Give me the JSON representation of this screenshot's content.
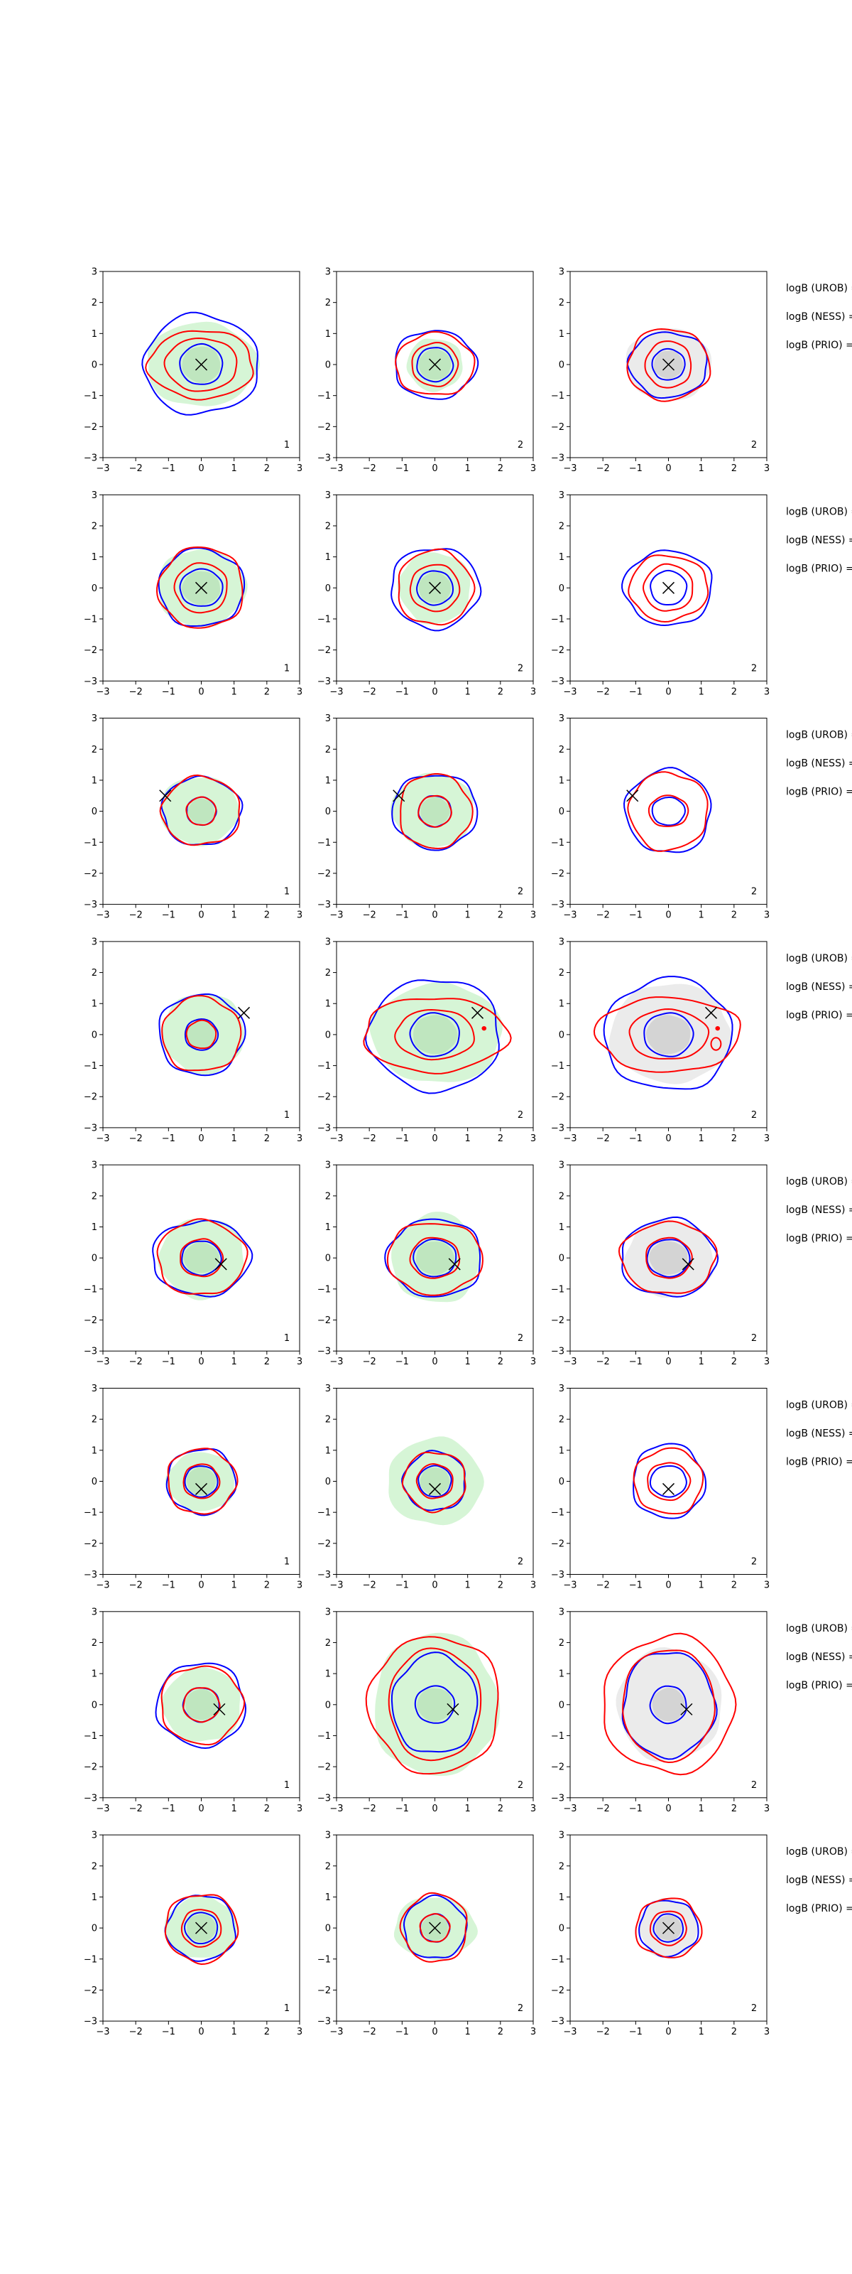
{
  "figure": {
    "rows": 8,
    "cols": 3,
    "row_labels": [
      "logB (UROB) =",
      "logB (NESS) =",
      "logB (PRIO) ="
    ]
  },
  "colors": {
    "fill_green": "#d6f5d6",
    "fill_gray": "#ebebeb",
    "uncertainty_blue": "#0000ff",
    "uncertainty_red": "#ff0000",
    "marker": "#000000",
    "frame": "#000000"
  },
  "chart_data": {
    "type": "contour-grid",
    "x_ticks": [
      "−3",
      "−2",
      "−1",
      "0",
      "1",
      "2",
      "3"
    ],
    "y_ticks": [
      "3",
      "2",
      "1",
      "0",
      "−1",
      "−2",
      "−3"
    ],
    "xlim": [
      -3,
      3
    ],
    "ylim": [
      -3,
      3
    ],
    "panel_numbers": [
      "1",
      "2",
      "2"
    ],
    "panel_fills": [
      "green",
      "green",
      "gray"
    ],
    "rows": [
      {
        "marker": [
          0,
          0
        ],
        "panels": [
          {
            "fill": [
              1.7,
              1.35
            ],
            "blue": [
              [
                1.75,
                1.6
              ],
              [
                0.65,
                0.65
              ]
            ],
            "red": [
              [
                1.6,
                1.1
              ],
              [
                1.1,
                0.85
              ]
            ],
            "extra": []
          },
          {
            "fill": [
              0.85,
              0.85
            ],
            "blue": [
              [
                1.25,
                1.1
              ],
              [
                0.55,
                0.55
              ]
            ],
            "red": [
              [
                1.2,
                1.0
              ],
              [
                0.7,
                0.7
              ]
            ],
            "extra": []
          },
          {
            "fill": [
              1.3,
              1.15
            ],
            "blue": [
              [
                1.2,
                1.05
              ],
              [
                0.5,
                0.5
              ]
            ],
            "red": [
              [
                1.25,
                1.15
              ],
              [
                0.7,
                0.75
              ]
            ],
            "extra": []
          }
        ]
      },
      {
        "marker": [
          0,
          0
        ],
        "panels": [
          {
            "fill": [
              1.35,
              1.25
            ],
            "blue": [
              [
                1.3,
                1.25
              ],
              [
                0.65,
                0.6
              ]
            ],
            "red": [
              [
                1.3,
                1.3
              ],
              [
                0.8,
                0.8
              ]
            ],
            "extra": []
          },
          {
            "fill": [
              1.1,
              1.15
            ],
            "blue": [
              [
                1.35,
                1.3
              ],
              [
                0.55,
                0.55
              ]
            ],
            "red": [
              [
                1.15,
                1.2
              ],
              [
                0.75,
                0.75
              ]
            ],
            "extra": []
          },
          {
            "fill": [
              0,
              0
            ],
            "blue": [
              [
                1.35,
                1.2
              ],
              [
                0.55,
                0.55
              ]
            ],
            "red": [
              [
                1.2,
                1.05
              ],
              [
                0.75,
                0.75
              ]
            ],
            "extra": []
          }
        ]
      },
      {
        "marker": [
          -1.1,
          0.5
        ],
        "panels": [
          {
            "fill": [
              1.2,
              1.1
            ],
            "blue": [
              [
                1.2,
                1.1
              ],
              [
                0.45,
                0.45
              ]
            ],
            "red": [
              [
                1.2,
                1.1
              ],
              [
                0.45,
                0.45
              ]
            ],
            "extra": []
          },
          {
            "fill": [
              1.25,
              1.2
            ],
            "blue": [
              [
                1.3,
                1.2
              ],
              [
                0.5,
                0.5
              ]
            ],
            "red": [
              [
                1.1,
                1.2
              ],
              [
                0.5,
                0.5
              ]
            ],
            "extra": []
          },
          {
            "fill": [
              0,
              0
            ],
            "blue": [
              [
                1.3,
                1.35
              ],
              [
                0.5,
                0.45
              ]
            ],
            "red": [
              [
                1.2,
                1.25
              ],
              [
                0.6,
                0.5
              ]
            ],
            "extra": []
          }
        ]
      },
      {
        "marker": [
          1.3,
          0.7
        ],
        "panels": [
          {
            "fill": [
              1.25,
              1.3
            ],
            "blue": [
              [
                1.3,
                1.3
              ],
              [
                0.5,
                0.5
              ]
            ],
            "red": [
              [
                1.2,
                1.2
              ],
              [
                0.45,
                0.45
              ]
            ],
            "extra": []
          },
          {
            "fill": [
              2.0,
              1.6
            ],
            "blue": [
              [
                2.0,
                1.8
              ],
              [
                0.75,
                0.7
              ]
            ],
            "red": [
              [
                2.2,
                1.2
              ],
              [
                1.2,
                0.8
              ]
            ],
            "extra": [
              [
                1.5,
                0.2,
                0.05,
                0.05
              ]
            ]
          },
          {
            "fill": [
              1.85,
              1.6
            ],
            "blue": [
              [
                1.95,
                1.8
              ],
              [
                0.75,
                0.7
              ]
            ],
            "red": [
              [
                2.2,
                1.2
              ],
              [
                1.2,
                0.8
              ]
            ],
            "extra": [
              [
                1.5,
                0.2,
                0.05,
                0.05
              ],
              [
                1.45,
                -0.3,
                0.15,
                0.2
              ]
            ]
          }
        ]
      },
      {
        "marker": [
          0.6,
          -0.2
        ],
        "panels": [
          {
            "fill": [
              1.3,
              1.3
            ],
            "blue": [
              [
                1.5,
                1.2
              ],
              [
                0.6,
                0.55
              ]
            ],
            "red": [
              [
                1.35,
                1.2
              ],
              [
                0.65,
                0.6
              ]
            ],
            "extra": []
          },
          {
            "fill": [
              1.35,
              1.45
            ],
            "blue": [
              [
                1.45,
                1.25
              ],
              [
                0.65,
                0.6
              ]
            ],
            "red": [
              [
                1.45,
                1.15
              ],
              [
                0.75,
                0.65
              ]
            ],
            "extra": []
          },
          {
            "fill": [
              1.35,
              1.25
            ],
            "blue": [
              [
                1.45,
                1.25
              ],
              [
                0.65,
                0.6
              ]
            ],
            "red": [
              [
                1.45,
                1.15
              ],
              [
                0.7,
                0.65
              ]
            ],
            "extra": []
          }
        ]
      },
      {
        "marker": [
          0,
          -0.25
        ],
        "panels": [
          {
            "fill": [
              1.05,
              0.95
            ],
            "blue": [
              [
                1.05,
                1.05
              ],
              [
                0.5,
                0.5
              ]
            ],
            "red": [
              [
                1.05,
                1.05
              ],
              [
                0.55,
                0.55
              ]
            ],
            "extra": []
          },
          {
            "fill": [
              1.45,
              1.4
            ],
            "blue": [
              [
                0.95,
                0.95
              ],
              [
                0.5,
                0.5
              ]
            ],
            "red": [
              [
                0.95,
                0.95
              ],
              [
                0.55,
                0.55
              ]
            ],
            "extra": []
          },
          {
            "fill": [
              0,
              0
            ],
            "blue": [
              [
                1.1,
                1.2
              ],
              [
                0.55,
                0.5
              ]
            ],
            "red": [
              [
                1.05,
                1.05
              ],
              [
                0.65,
                0.6
              ]
            ],
            "extra": []
          }
        ]
      },
      {
        "marker": [
          0.55,
          -0.15
        ],
        "panels": [
          {
            "fill": [
              1.2,
              1.2
            ],
            "blue": [
              [
                1.35,
                1.35
              ],
              [
                0.55,
                0.55
              ]
            ],
            "red": [
              [
                1.25,
                1.25
              ],
              [
                0.55,
                0.55
              ]
            ],
            "extra": []
          },
          {
            "fill": [
              1.9,
              2.3
            ],
            "blue": [
              [
                1.3,
                1.6
              ],
              [
                0.6,
                0.6
              ]
            ],
            "red": [
              [
                2.0,
                2.2
              ],
              [
                1.4,
                1.8
              ]
            ],
            "extra": []
          },
          {
            "fill": [
              1.6,
              1.8
            ],
            "blue": [
              [
                1.4,
                1.7
              ],
              [
                0.55,
                0.6
              ]
            ],
            "red": [
              [
                2.0,
                2.2
              ],
              [
                1.4,
                1.8
              ]
            ],
            "extra": []
          }
        ]
      },
      {
        "marker": [
          0,
          0
        ],
        "panels": [
          {
            "fill": [
              1.1,
              1.0
            ],
            "blue": [
              [
                1.05,
                1.05
              ],
              [
                0.5,
                0.5
              ]
            ],
            "red": [
              [
                1.1,
                1.1
              ],
              [
                0.6,
                0.6
              ]
            ],
            "extra": []
          },
          {
            "fill": [
              1.25,
              1.0
            ],
            "blue": [
              [
                0.95,
                1.0
              ],
              [
                0.45,
                0.45
              ]
            ],
            "red": [
              [
                1.0,
                1.1
              ],
              [
                0.45,
                0.45
              ]
            ],
            "extra": []
          },
          {
            "fill": [
              0.9,
              0.95
            ],
            "blue": [
              [
                0.9,
                0.9
              ],
              [
                0.45,
                0.45
              ]
            ],
            "red": [
              [
                1.0,
                0.95
              ],
              [
                0.55,
                0.55
              ]
            ],
            "extra": []
          }
        ]
      }
    ]
  }
}
